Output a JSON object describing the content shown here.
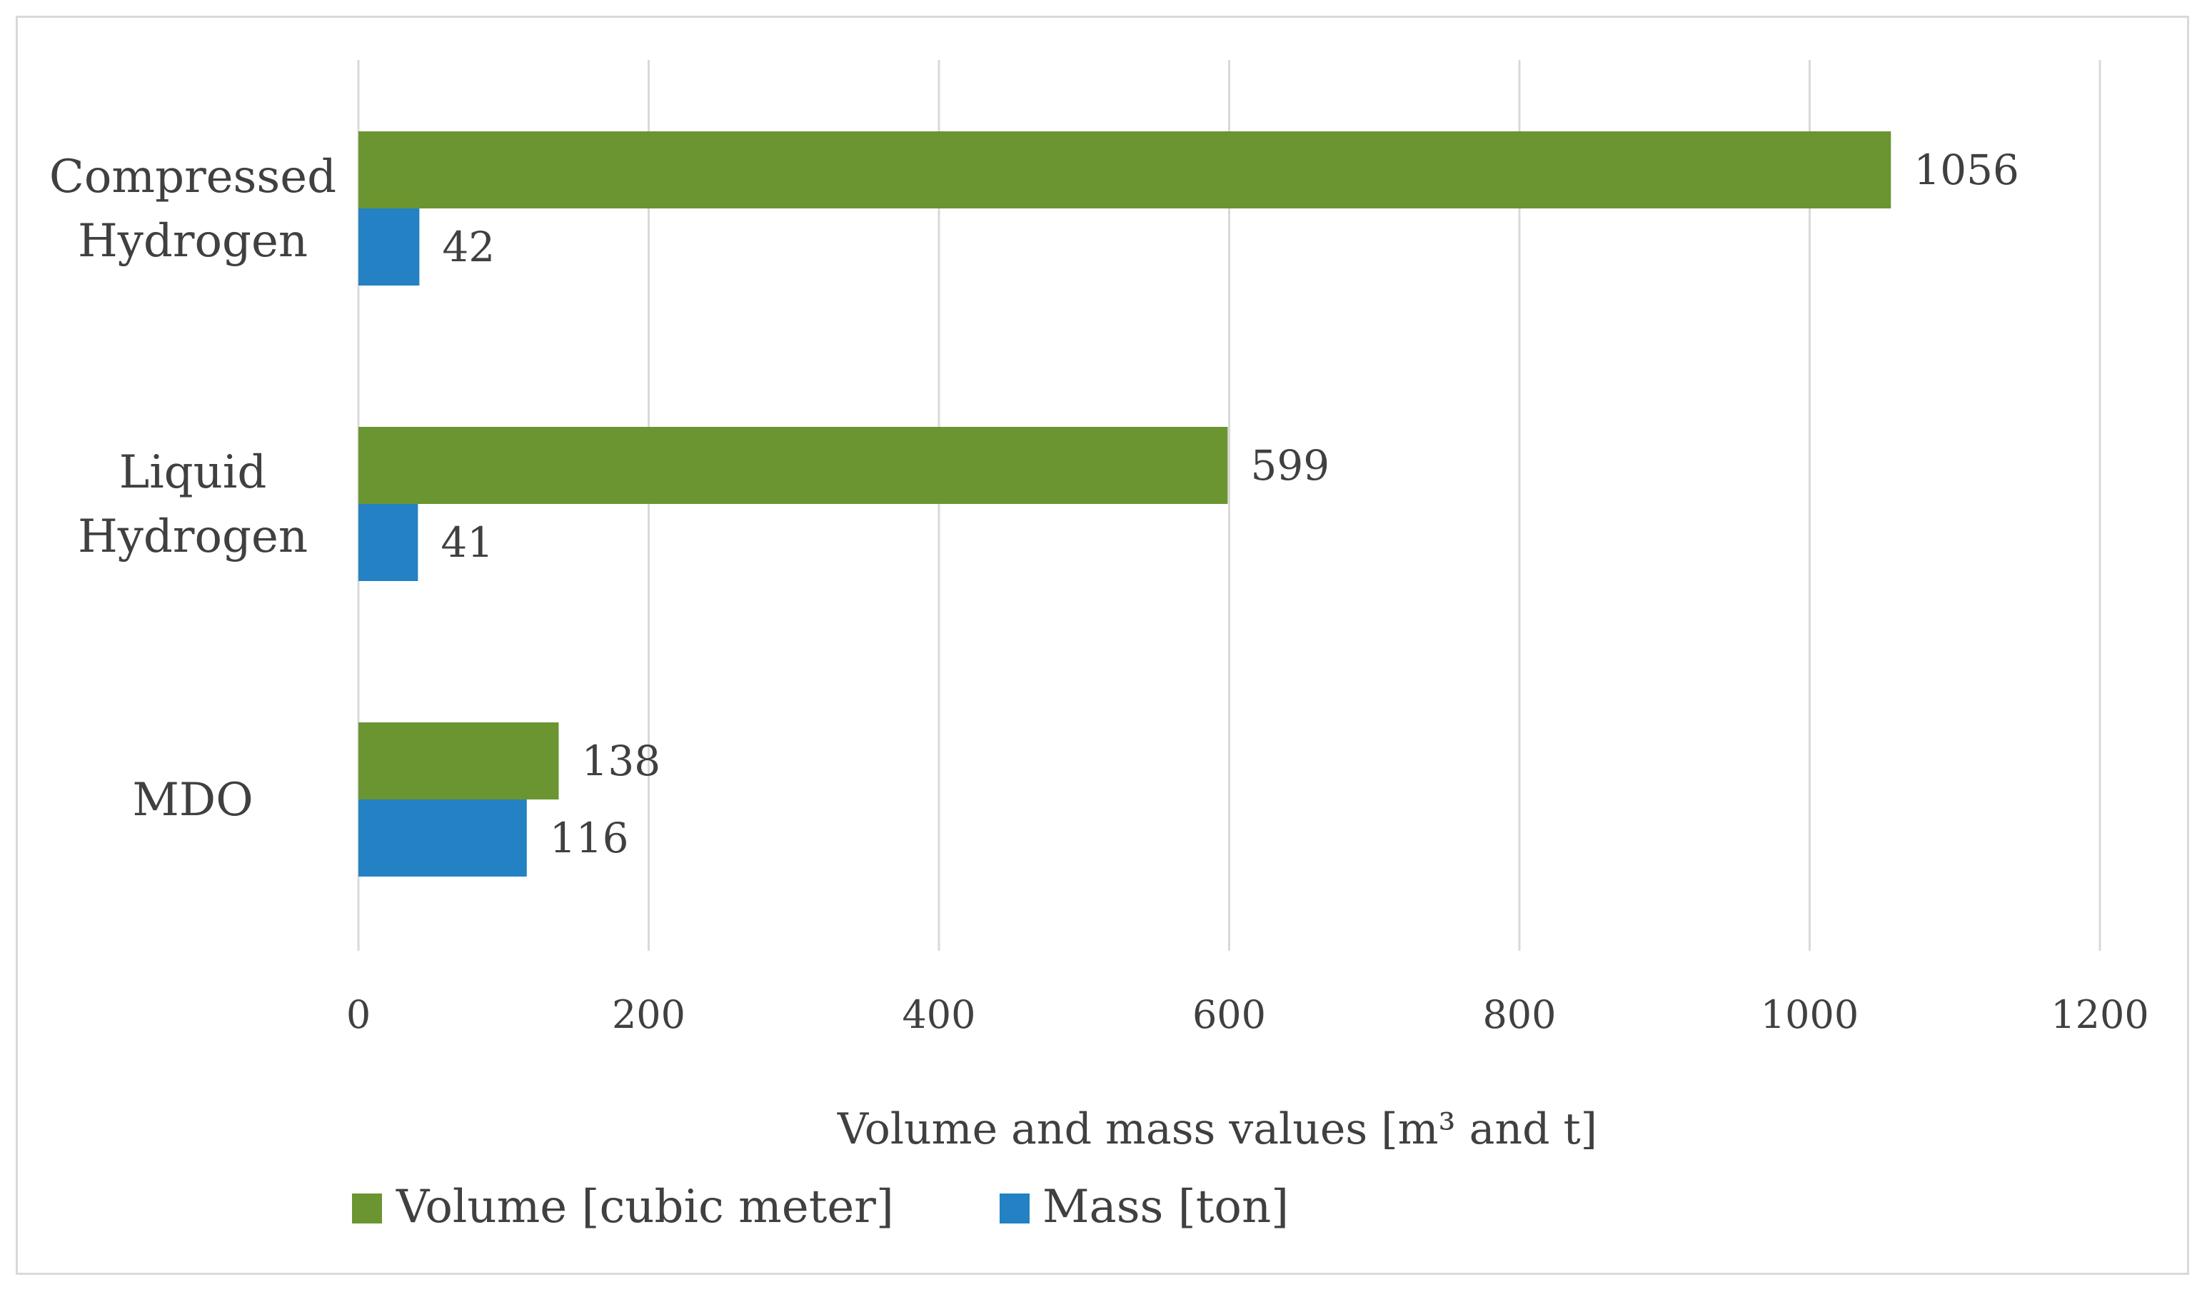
{
  "chart_data": {
    "type": "bar",
    "orientation": "horizontal",
    "categories": [
      [
        "Compressed",
        "Hydrogen"
      ],
      [
        "Liquid",
        "Hydrogen"
      ],
      [
        "MDO"
      ]
    ],
    "series": [
      {
        "name": "Volume [cubic meter]",
        "values": [
          1056,
          599,
          138
        ],
        "color": "#6b9531"
      },
      {
        "name": "Mass [ton]",
        "values": [
          42,
          41,
          116
        ],
        "color": "#2381c4"
      }
    ],
    "xlim": [
      0,
      1200
    ],
    "xticks": [
      0,
      200,
      400,
      600,
      800,
      1000,
      1200
    ],
    "xlabel": "Volume and mass values [m³ and t]",
    "ylabel": "",
    "title": "",
    "grid": "vertical",
    "legend_position": "bottom",
    "data_labels": true
  }
}
